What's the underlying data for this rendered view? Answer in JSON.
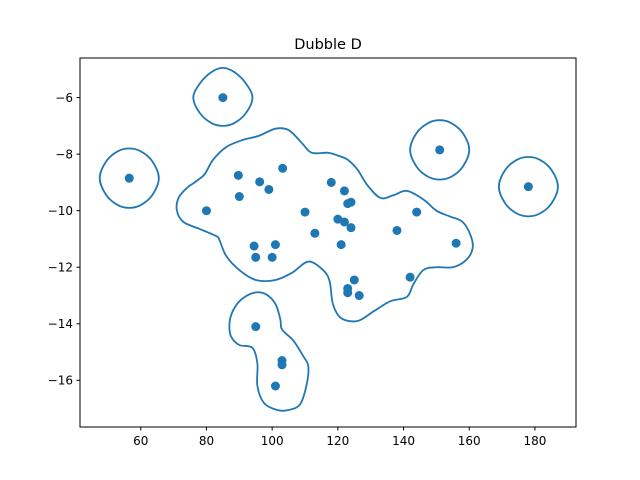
{
  "chart_data": {
    "type": "scatter",
    "title": "Dubble D",
    "xlabel": "",
    "ylabel": "",
    "xlim": [
      41.5,
      192.5
    ],
    "ylim": [
      -17.65,
      -4.6
    ],
    "xticks": [
      60,
      80,
      100,
      120,
      140,
      160,
      180
    ],
    "yticks": [
      -16,
      -14,
      -12,
      -10,
      -8,
      -6
    ],
    "grid": false,
    "colors": {
      "points": "#1f77b4",
      "outline": "#1f77b4"
    },
    "series": [
      {
        "points": [
          {
            "x": 85.0,
            "y": -6.0
          },
          {
            "x": 56.5,
            "y": -8.85
          },
          {
            "x": 151.0,
            "y": -7.85
          },
          {
            "x": 178.0,
            "y": -9.15
          },
          {
            "x": 89.7,
            "y": -8.75
          },
          {
            "x": 96.2,
            "y": -8.98
          },
          {
            "x": 103.2,
            "y": -8.5
          },
          {
            "x": 99.0,
            "y": -9.25
          },
          {
            "x": 90.0,
            "y": -9.5
          },
          {
            "x": 80.0,
            "y": -10.0
          },
          {
            "x": 110.0,
            "y": -10.05
          },
          {
            "x": 118.0,
            "y": -9.0
          },
          {
            "x": 122.0,
            "y": -9.3
          },
          {
            "x": 123.0,
            "y": -9.75
          },
          {
            "x": 124.0,
            "y": -9.7
          },
          {
            "x": 120.0,
            "y": -10.3
          },
          {
            "x": 122.0,
            "y": -10.4
          },
          {
            "x": 124.0,
            "y": -10.6
          },
          {
            "x": 113.0,
            "y": -10.8
          },
          {
            "x": 138.0,
            "y": -10.7
          },
          {
            "x": 144.0,
            "y": -10.05
          },
          {
            "x": 94.5,
            "y": -11.25
          },
          {
            "x": 101.0,
            "y": -11.2
          },
          {
            "x": 121.0,
            "y": -11.2
          },
          {
            "x": 95.0,
            "y": -11.65
          },
          {
            "x": 100.0,
            "y": -11.65
          },
          {
            "x": 156.0,
            "y": -11.15
          },
          {
            "x": 125.0,
            "y": -12.45
          },
          {
            "x": 142.0,
            "y": -12.35
          },
          {
            "x": 123.0,
            "y": -12.75
          },
          {
            "x": 123.0,
            "y": -12.9
          },
          {
            "x": 126.5,
            "y": -13.0
          },
          {
            "x": 95.0,
            "y": -14.1
          },
          {
            "x": 103.0,
            "y": -15.3
          },
          {
            "x": 103.0,
            "y": -15.45
          },
          {
            "x": 101.0,
            "y": -16.2
          }
        ]
      }
    ],
    "outlines": [
      {
        "points": [
          [
            76,
            -6.0
          ],
          [
            78,
            -5.5
          ],
          [
            81.5,
            -5.1
          ],
          [
            85,
            -4.95
          ],
          [
            88.5,
            -5.1
          ],
          [
            92,
            -5.5
          ],
          [
            94,
            -6.0
          ],
          [
            92,
            -6.55
          ],
          [
            88.5,
            -6.9
          ],
          [
            85,
            -7.0
          ],
          [
            81.5,
            -6.9
          ],
          [
            78,
            -6.55
          ]
        ]
      },
      {
        "points": [
          [
            47.5,
            -8.85
          ],
          [
            49.5,
            -8.25
          ],
          [
            53,
            -7.9
          ],
          [
            56.5,
            -7.8
          ],
          [
            60,
            -7.9
          ],
          [
            63.5,
            -8.25
          ],
          [
            65.5,
            -8.85
          ],
          [
            63.5,
            -9.45
          ],
          [
            60,
            -9.8
          ],
          [
            56.5,
            -9.9
          ],
          [
            53,
            -9.8
          ],
          [
            49.5,
            -9.45
          ]
        ]
      },
      {
        "points": [
          [
            142,
            -7.85
          ],
          [
            144,
            -7.25
          ],
          [
            147.5,
            -6.9
          ],
          [
            151,
            -6.8
          ],
          [
            154.5,
            -6.9
          ],
          [
            158,
            -7.25
          ],
          [
            160,
            -7.85
          ],
          [
            158,
            -8.45
          ],
          [
            154.5,
            -8.8
          ],
          [
            151,
            -8.9
          ],
          [
            147.5,
            -8.8
          ],
          [
            144,
            -8.45
          ]
        ]
      },
      {
        "points": [
          [
            169,
            -9.15
          ],
          [
            171,
            -8.55
          ],
          [
            174.5,
            -8.2
          ],
          [
            178,
            -8.1
          ],
          [
            181.5,
            -8.2
          ],
          [
            185,
            -8.55
          ],
          [
            187,
            -9.15
          ],
          [
            185,
            -9.75
          ],
          [
            181.5,
            -10.1
          ],
          [
            178,
            -10.2
          ],
          [
            174.5,
            -10.1
          ],
          [
            171,
            -9.75
          ]
        ]
      },
      {
        "points": [
          [
            71,
            -10.0
          ],
          [
            71.5,
            -9.55
          ],
          [
            74,
            -9.2
          ],
          [
            77,
            -8.95
          ],
          [
            79.5,
            -8.7
          ],
          [
            82,
            -8.2
          ],
          [
            86,
            -7.75
          ],
          [
            91,
            -7.5
          ],
          [
            96,
            -7.35
          ],
          [
            101,
            -7.1
          ],
          [
            105,
            -7.15
          ],
          [
            109,
            -7.6
          ],
          [
            112,
            -7.95
          ],
          [
            117,
            -7.95
          ],
          [
            120,
            -8.05
          ],
          [
            123,
            -8.2
          ],
          [
            126,
            -8.55
          ],
          [
            129,
            -9.1
          ],
          [
            133,
            -9.55
          ],
          [
            137,
            -9.45
          ],
          [
            141,
            -9.3
          ],
          [
            146,
            -9.6
          ],
          [
            150,
            -10.0
          ],
          [
            154,
            -10.2
          ],
          [
            158,
            -10.4
          ],
          [
            160.5,
            -10.9
          ],
          [
            161,
            -11.35
          ],
          [
            159,
            -11.75
          ],
          [
            155,
            -12.0
          ],
          [
            150,
            -12.0
          ],
          [
            146,
            -12.1
          ],
          [
            143,
            -12.6
          ],
          [
            141,
            -13.05
          ],
          [
            136,
            -13.2
          ],
          [
            131,
            -13.55
          ],
          [
            126,
            -13.9
          ],
          [
            121,
            -13.8
          ],
          [
            118.5,
            -13.3
          ],
          [
            117.5,
            -12.5
          ],
          [
            115.5,
            -12.1
          ],
          [
            111,
            -11.8
          ],
          [
            106,
            -12.2
          ],
          [
            101,
            -12.45
          ],
          [
            95,
            -12.45
          ],
          [
            90,
            -12.1
          ],
          [
            86,
            -11.6
          ],
          [
            84,
            -11.05
          ],
          [
            83,
            -10.9
          ],
          [
            78,
            -10.65
          ],
          [
            73,
            -10.4
          ]
        ]
      },
      {
        "points": [
          [
            87,
            -14.0
          ],
          [
            88,
            -13.55
          ],
          [
            90.5,
            -13.15
          ],
          [
            94.5,
            -12.9
          ],
          [
            98,
            -12.95
          ],
          [
            101,
            -13.3
          ],
          [
            102.5,
            -13.85
          ],
          [
            103,
            -14.2
          ],
          [
            106.5,
            -14.6
          ],
          [
            109.5,
            -15.15
          ],
          [
            111,
            -15.5
          ],
          [
            110.5,
            -16.15
          ],
          [
            108.5,
            -16.85
          ],
          [
            105,
            -17.05
          ],
          [
            101.5,
            -17.05
          ],
          [
            97.5,
            -16.8
          ],
          [
            95.5,
            -16.2
          ],
          [
            95.5,
            -15.4
          ],
          [
            94,
            -14.85
          ],
          [
            90,
            -14.75
          ],
          [
            87.5,
            -14.45
          ]
        ]
      }
    ]
  }
}
